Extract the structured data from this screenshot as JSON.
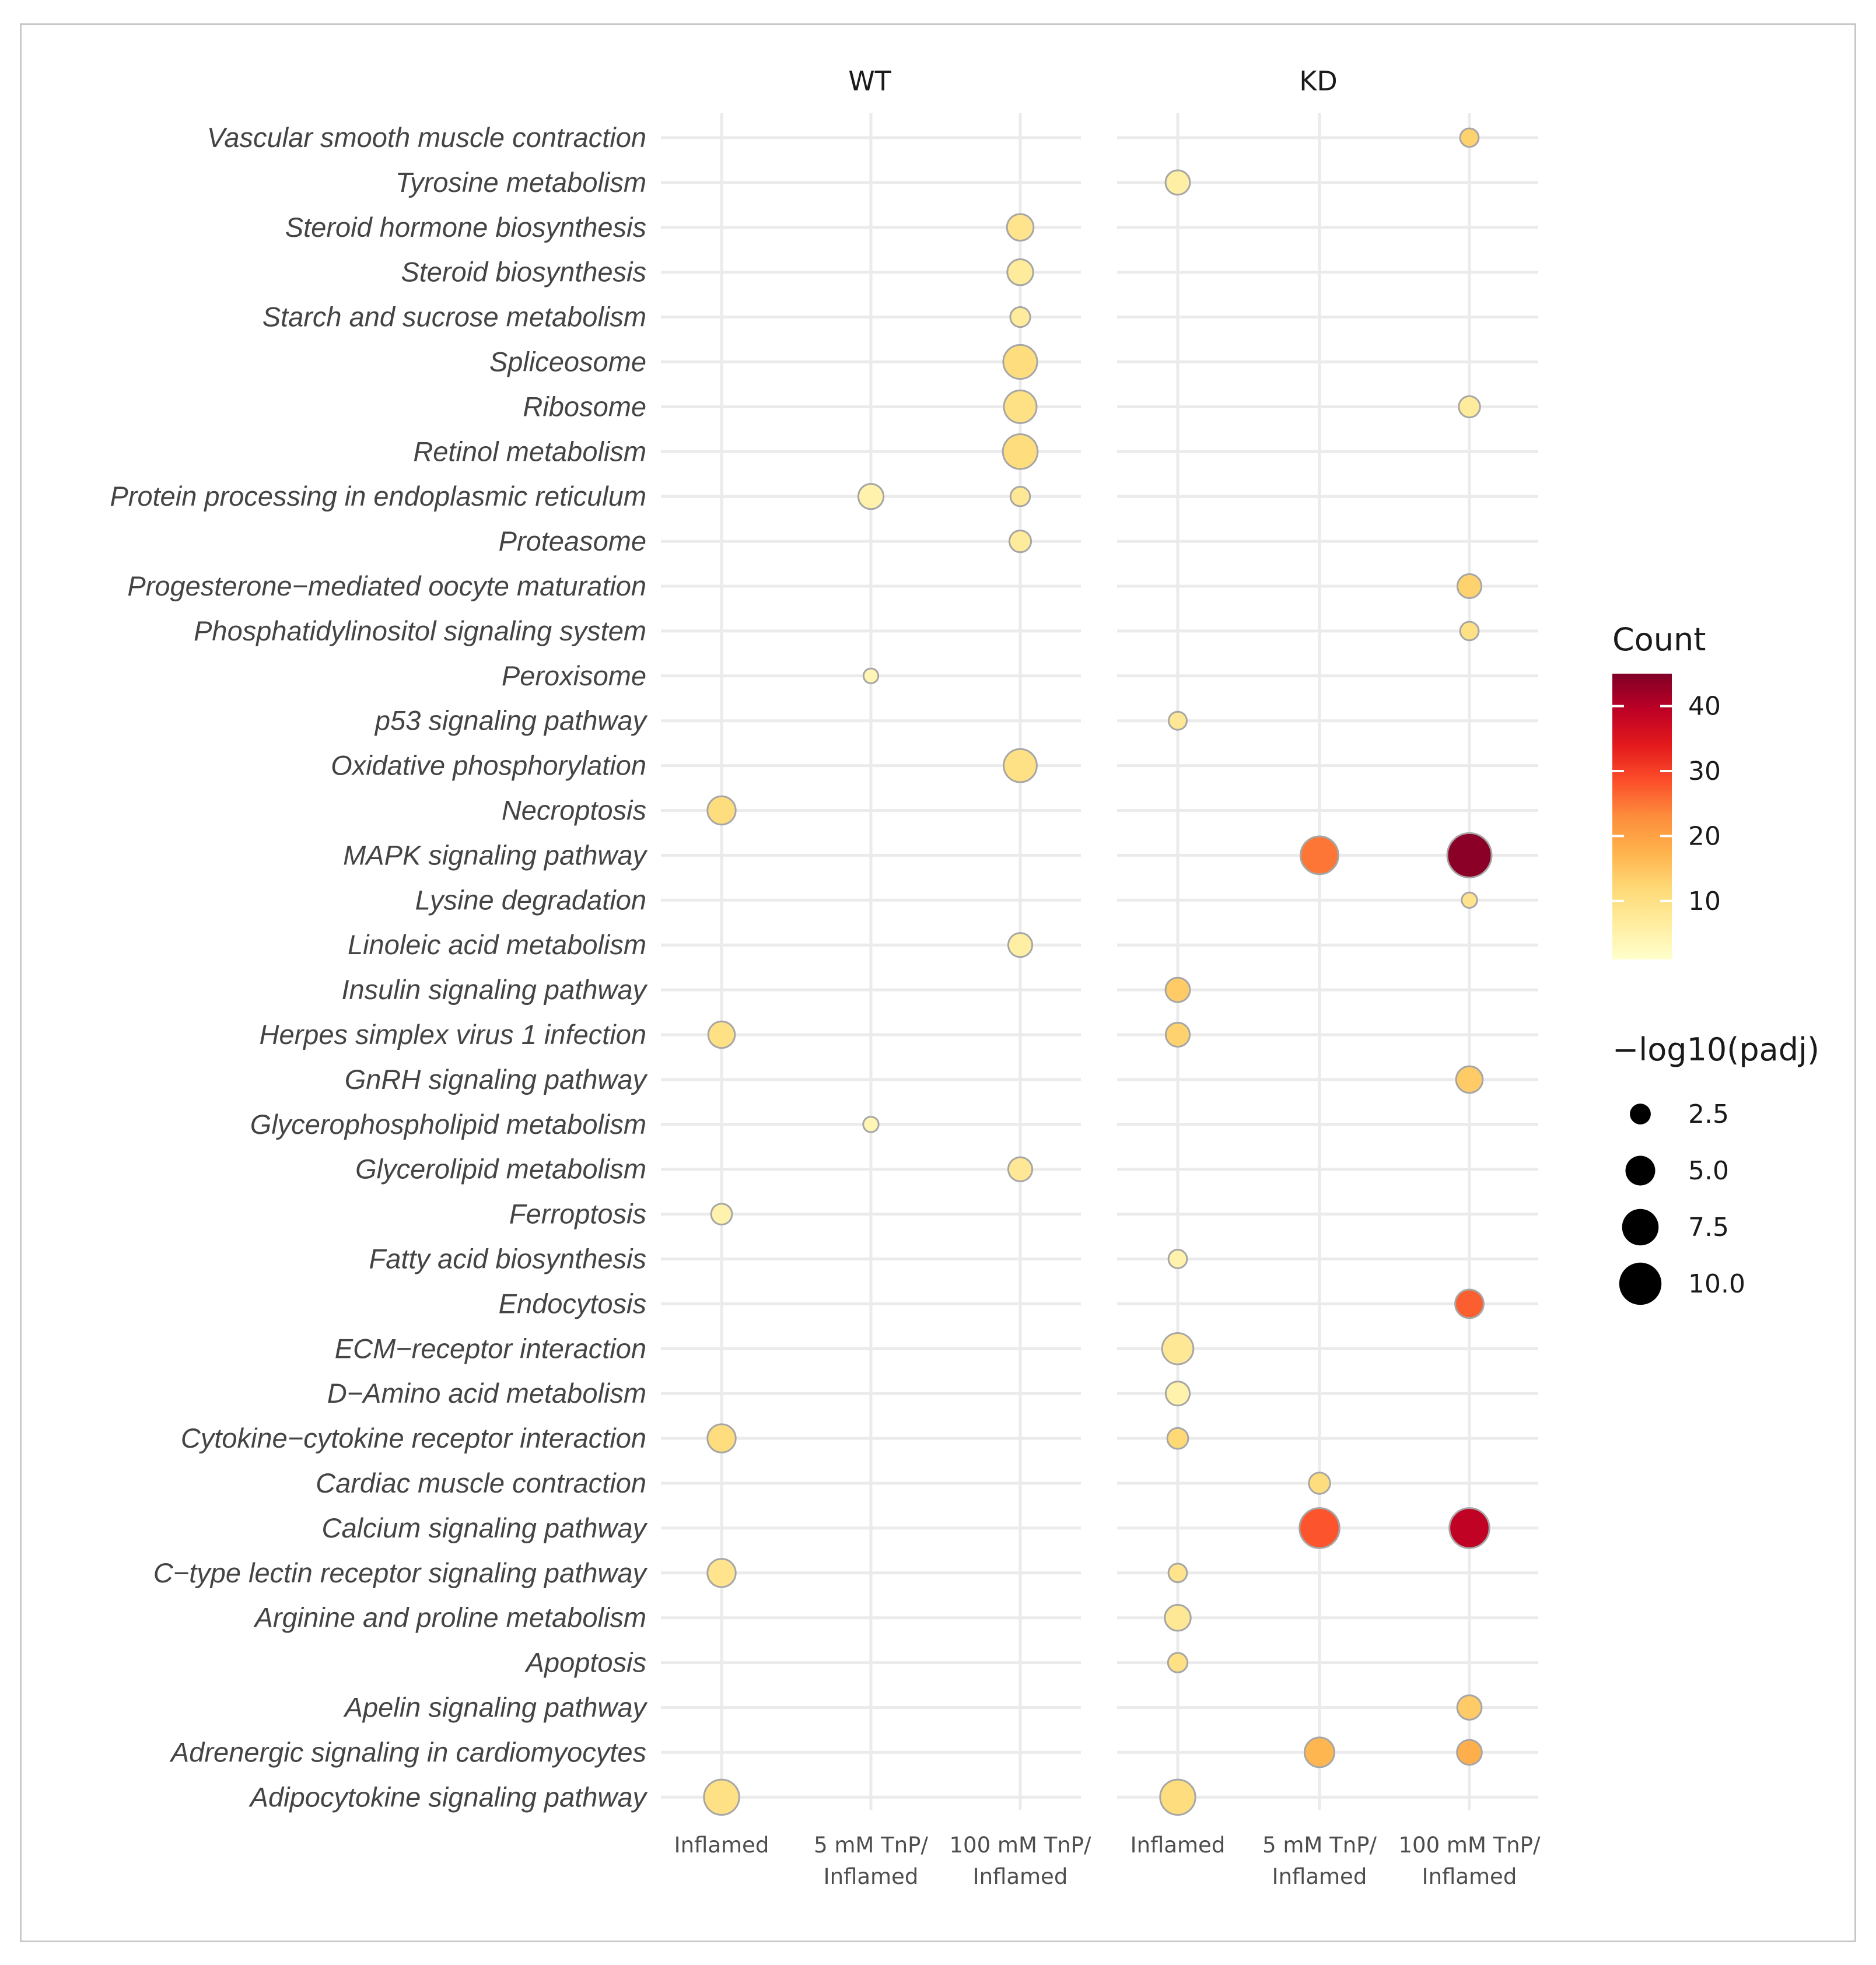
{
  "chart_data": {
    "type": "scatter",
    "panels": [
      "WT",
      "KD"
    ],
    "x_levels": [
      {
        "line1": "Inflamed",
        "line2": ""
      },
      {
        "line1": "5 mM TnP/",
        "line2": "Inflamed"
      },
      {
        "line1": "100 mM TnP/",
        "line2": "Inflamed"
      }
    ],
    "categories": [
      "Vascular smooth muscle contraction",
      "Tyrosine metabolism",
      "Steroid hormone biosynthesis",
      "Steroid biosynthesis",
      "Starch and sucrose metabolism",
      "Spliceosome",
      "Ribosome",
      "Retinol metabolism",
      "Protein processing in endoplasmic reticulum",
      "Proteasome",
      "Progesterone−mediated oocyte maturation",
      "Phosphatidylinositol signaling system",
      "Peroxisome",
      "p53 signaling pathway",
      "Oxidative phosphorylation",
      "Necroptosis",
      "MAPK signaling pathway",
      "Lysine degradation",
      "Linoleic acid metabolism",
      "Insulin signaling pathway",
      "Herpes simplex virus 1 infection",
      "GnRH signaling pathway",
      "Glycerophospholipid metabolism",
      "Glycerolipid metabolism",
      "Ferroptosis",
      "Fatty acid biosynthesis",
      "Endocytosis",
      "ECM−receptor interaction",
      "D−Amino acid metabolism",
      "Cytokine−cytokine receptor interaction",
      "Cardiac muscle contraction",
      "Calcium signaling pathway",
      "C−type lectin receptor signaling pathway",
      "Arginine and proline metabolism",
      "Apoptosis",
      "Apelin signaling pathway",
      "Adrenergic signaling in cardiomyocytes",
      "Adipocytokine signaling pathway"
    ],
    "points": [
      {
        "panel": "KD",
        "x": 2,
        "pathway": "Vascular smooth muscle contraction",
        "count": 13,
        "neglog10padj": 2.0
      },
      {
        "panel": "KD",
        "x": 0,
        "pathway": "Tyrosine metabolism",
        "count": 6,
        "neglog10padj": 3.4
      },
      {
        "panel": "WT",
        "x": 2,
        "pathway": "Steroid hormone biosynthesis",
        "count": 9,
        "neglog10padj": 4.0
      },
      {
        "panel": "WT",
        "x": 2,
        "pathway": "Steroid biosynthesis",
        "count": 7,
        "neglog10padj": 3.8
      },
      {
        "panel": "WT",
        "x": 2,
        "pathway": "Starch and sucrose metabolism",
        "count": 7,
        "neglog10padj": 2.3
      },
      {
        "panel": "WT",
        "x": 2,
        "pathway": "Spliceosome",
        "count": 11,
        "neglog10padj": 6.5
      },
      {
        "panel": "WT",
        "x": 2,
        "pathway": "Ribosome",
        "count": 10,
        "neglog10padj": 6.0
      },
      {
        "panel": "KD",
        "x": 2,
        "pathway": "Ribosome",
        "count": 7,
        "neglog10padj": 2.6
      },
      {
        "panel": "WT",
        "x": 2,
        "pathway": "Retinol metabolism",
        "count": 11,
        "neglog10padj": 6.8
      },
      {
        "panel": "WT",
        "x": 1,
        "pathway": "Protein processing in endoplasmic reticulum",
        "count": 5,
        "neglog10padj": 3.6
      },
      {
        "panel": "WT",
        "x": 2,
        "pathway": "Protein processing in endoplasmic reticulum",
        "count": 8,
        "neglog10padj": 2.2
      },
      {
        "panel": "WT",
        "x": 2,
        "pathway": "Proteasome",
        "count": 7,
        "neglog10padj": 2.7
      },
      {
        "panel": "KD",
        "x": 2,
        "pathway": "Progesterone−mediated oocyte maturation",
        "count": 13,
        "neglog10padj": 3.3
      },
      {
        "panel": "KD",
        "x": 2,
        "pathway": "Phosphatidylinositol signaling system",
        "count": 10,
        "neglog10padj": 2.0
      },
      {
        "panel": "WT",
        "x": 1,
        "pathway": "Peroxisome",
        "count": 4,
        "neglog10padj": 1.3
      },
      {
        "panel": "KD",
        "x": 0,
        "pathway": "p53 signaling pathway",
        "count": 8,
        "neglog10padj": 1.9
      },
      {
        "panel": "WT",
        "x": 2,
        "pathway": "Oxidative phosphorylation",
        "count": 10,
        "neglog10padj": 6.2
      },
      {
        "panel": "WT",
        "x": 0,
        "pathway": "Necroptosis",
        "count": 11,
        "neglog10padj": 4.5
      },
      {
        "panel": "KD",
        "x": 1,
        "pathway": "MAPK signaling pathway",
        "count": 25,
        "neglog10padj": 8.0
      },
      {
        "panel": "KD",
        "x": 2,
        "pathway": "MAPK signaling pathway",
        "count": 44,
        "neglog10padj": 11.0
      },
      {
        "panel": "KD",
        "x": 2,
        "pathway": "Lysine degradation",
        "count": 9,
        "neglog10padj": 1.4
      },
      {
        "panel": "WT",
        "x": 2,
        "pathway": "Linoleic acid metabolism",
        "count": 6,
        "neglog10padj": 3.3
      },
      {
        "panel": "KD",
        "x": 0,
        "pathway": "Insulin signaling pathway",
        "count": 14,
        "neglog10padj": 3.4
      },
      {
        "panel": "WT",
        "x": 0,
        "pathway": "Herpes simplex virus 1 infection",
        "count": 10,
        "neglog10padj": 4.0
      },
      {
        "panel": "KD",
        "x": 0,
        "pathway": "Herpes simplex virus 1 infection",
        "count": 13,
        "neglog10padj": 3.3
      },
      {
        "panel": "KD",
        "x": 2,
        "pathway": "GnRH signaling pathway",
        "count": 14,
        "neglog10padj": 4.0
      },
      {
        "panel": "WT",
        "x": 1,
        "pathway": "Glycerophospholipid metabolism",
        "count": 4,
        "neglog10padj": 1.4
      },
      {
        "panel": "WT",
        "x": 2,
        "pathway": "Glycerolipid metabolism",
        "count": 8,
        "neglog10padj": 3.3
      },
      {
        "panel": "WT",
        "x": 0,
        "pathway": "Ferroptosis",
        "count": 5,
        "neglog10padj": 2.5
      },
      {
        "panel": "KD",
        "x": 0,
        "pathway": "Fatty acid biosynthesis",
        "count": 5,
        "neglog10padj": 2.0
      },
      {
        "panel": "KD",
        "x": 2,
        "pathway": "Endocytosis",
        "count": 27,
        "neglog10padj": 4.6
      },
      {
        "panel": "KD",
        "x": 0,
        "pathway": "ECM−receptor interaction",
        "count": 8,
        "neglog10padj": 5.5
      },
      {
        "panel": "KD",
        "x": 0,
        "pathway": "D−Amino acid metabolism",
        "count": 5,
        "neglog10padj": 3.3
      },
      {
        "panel": "WT",
        "x": 0,
        "pathway": "Cytokine−cytokine receptor interaction",
        "count": 11,
        "neglog10padj": 4.5
      },
      {
        "panel": "KD",
        "x": 0,
        "pathway": "Cytokine−cytokine receptor interaction",
        "count": 12,
        "neglog10padj": 2.5
      },
      {
        "panel": "KD",
        "x": 1,
        "pathway": "Cardiac muscle contraction",
        "count": 11,
        "neglog10padj": 2.6
      },
      {
        "panel": "KD",
        "x": 1,
        "pathway": "Calcium signaling pathway",
        "count": 28,
        "neglog10padj": 9.0
      },
      {
        "panel": "KD",
        "x": 2,
        "pathway": "Calcium signaling pathway",
        "count": 39,
        "neglog10padj": 9.0
      },
      {
        "panel": "WT",
        "x": 0,
        "pathway": "C−type lectin receptor signaling pathway",
        "count": 9,
        "neglog10padj": 4.5
      },
      {
        "panel": "KD",
        "x": 0,
        "pathway": "C−type lectin receptor signaling pathway",
        "count": 9,
        "neglog10padj": 2.0
      },
      {
        "panel": "KD",
        "x": 0,
        "pathway": "Arginine and proline metabolism",
        "count": 8,
        "neglog10padj": 3.8
      },
      {
        "panel": "KD",
        "x": 0,
        "pathway": "Apoptosis",
        "count": 10,
        "neglog10padj": 2.2
      },
      {
        "panel": "KD",
        "x": 2,
        "pathway": "Apelin signaling pathway",
        "count": 14,
        "neglog10padj": 3.4
      },
      {
        "panel": "KD",
        "x": 1,
        "pathway": "Adrenergic signaling in cardiomyocytes",
        "count": 17,
        "neglog10padj": 5.0
      },
      {
        "panel": "KD",
        "x": 2,
        "pathway": "Adrenergic signaling in cardiomyocytes",
        "count": 18,
        "neglog10padj": 3.5
      },
      {
        "panel": "WT",
        "x": 0,
        "pathway": "Adipocytokine signaling pathway",
        "count": 10,
        "neglog10padj": 7.0
      },
      {
        "panel": "KD",
        "x": 0,
        "pathway": "Adipocytokine signaling pathway",
        "count": 11,
        "neglog10padj": 7.0
      }
    ],
    "color_legend": {
      "title": "Count",
      "ticks": [
        10,
        20,
        30,
        40
      ],
      "range": [
        1,
        45
      ],
      "colors": [
        "#ffffcc",
        "#ffeda0",
        "#fed976",
        "#feb24c",
        "#fd8d3c",
        "#fc4e2a",
        "#e31a1c",
        "#bd0026",
        "#800026"
      ]
    },
    "size_legend": {
      "title": "−log10(padj)",
      "values": [
        2.5,
        5.0,
        7.5,
        10.0
      ],
      "labels": [
        "2.5",
        "5.0",
        "7.5",
        "10.0"
      ],
      "range": [
        1,
        11
      ]
    },
    "point_stroke_color": "#a6a6a6",
    "grid_color": "#ebebeb"
  }
}
